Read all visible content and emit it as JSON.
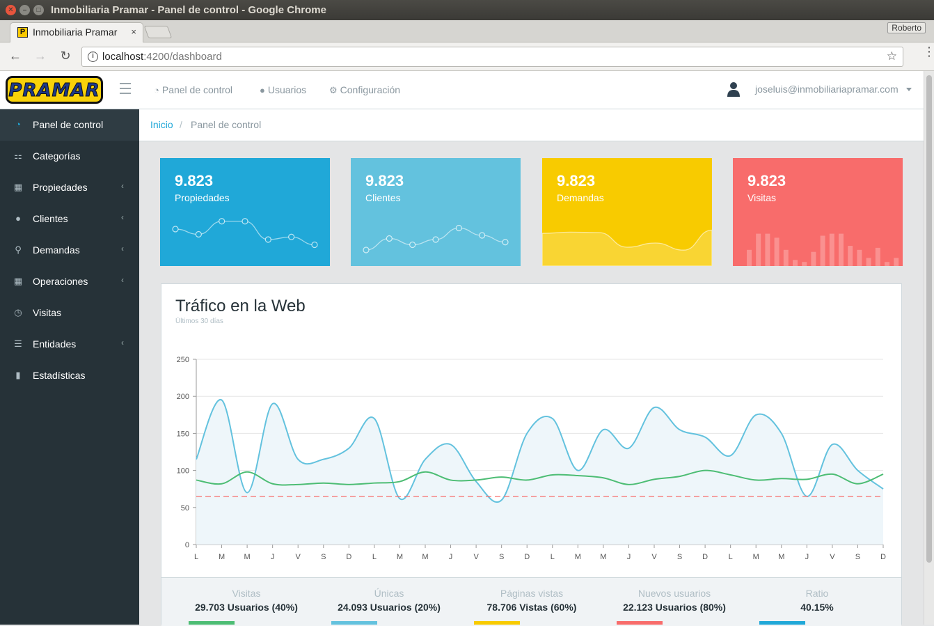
{
  "window": {
    "title": "Inmobiliaria Pramar - Panel de control - Google Chrome"
  },
  "browser": {
    "tab_title": "Inmobiliaria Pramar",
    "tab_close": "×",
    "favicon": "P",
    "profile": "Roberto",
    "url_host": "localhost",
    "url_path": ":4200/dashboard"
  },
  "header": {
    "logo_text": "PRAMAR",
    "nav": [
      {
        "label": "Panel de control",
        "icon": "dashboard-icon"
      },
      {
        "label": "Usuarios",
        "icon": "user-icon"
      },
      {
        "label": "Configuración",
        "icon": "gear-icon"
      }
    ],
    "user_email": "joseluis@inmobiliariapramar.com"
  },
  "sidebar": {
    "items": [
      {
        "label": "Panel de control",
        "icon": "speedometer-icon",
        "active": true,
        "caret": false
      },
      {
        "label": "Categorías",
        "icon": "sitemap-icon",
        "active": false,
        "caret": false
      },
      {
        "label": "Propiedades",
        "icon": "building-icon",
        "active": false,
        "caret": true
      },
      {
        "label": "Clientes",
        "icon": "users-icon",
        "active": false,
        "caret": true
      },
      {
        "label": "Demandas",
        "icon": "search-icon",
        "active": false,
        "caret": true
      },
      {
        "label": "Operaciones",
        "icon": "calculator-icon",
        "active": false,
        "caret": true
      },
      {
        "label": "Visitas",
        "icon": "clock-icon",
        "active": false,
        "caret": false
      },
      {
        "label": "Entidades",
        "icon": "list-icon",
        "active": false,
        "caret": true
      },
      {
        "label": "Estadísticas",
        "icon": "bar-chart-icon",
        "active": false,
        "caret": false
      }
    ]
  },
  "breadcrumb": {
    "home": "Inicio",
    "separator": "/",
    "current": "Panel de control"
  },
  "cards": [
    {
      "value": "9.823",
      "label": "Propiedades",
      "color": "#20a8d8",
      "spark": "line",
      "points": [
        60,
        50,
        75,
        75,
        40,
        45,
        30
      ]
    },
    {
      "value": "9.823",
      "label": "Clientes",
      "color": "#63c2de",
      "spark": "line",
      "points": [
        20,
        42,
        30,
        40,
        62,
        48,
        35
      ]
    },
    {
      "value": "9.823",
      "label": "Demandas",
      "color": "#f8cb00",
      "spark": "area",
      "points": [
        78,
        81,
        80,
        45,
        55,
        38,
        86
      ]
    },
    {
      "value": "9.823",
      "label": "Visitas",
      "color": "#f86c6b",
      "spark": "bar",
      "points": [
        40,
        80,
        80,
        70,
        40,
        15,
        10,
        35,
        75,
        80,
        80,
        50,
        40,
        20,
        45,
        10,
        20,
        45
      ]
    }
  ],
  "traffic": {
    "title": "Tráfico en la Web",
    "subtitle": "Últimos 30 días"
  },
  "chart_data": {
    "type": "line",
    "x": [
      "L",
      "M",
      "M",
      "J",
      "V",
      "S",
      "D",
      "L",
      "M",
      "M",
      "J",
      "V",
      "S",
      "D",
      "L",
      "M",
      "M",
      "J",
      "V",
      "S",
      "D",
      "L",
      "M",
      "M",
      "J",
      "V",
      "S",
      "D"
    ],
    "ylim": [
      0,
      250
    ],
    "yticks": [
      0,
      50,
      100,
      150,
      200,
      250
    ],
    "grid": true,
    "series": [
      {
        "color": "#63c2de",
        "fill": "#eef6fa",
        "values": [
          115,
          195,
          70,
          190,
          115,
          115,
          130,
          170,
          62,
          115,
          135,
          85,
          60,
          150,
          170,
          100,
          155,
          130,
          185,
          155,
          145,
          120,
          175,
          150,
          65,
          135,
          100,
          75
        ]
      },
      {
        "color": "#4dbd74",
        "values": [
          87,
          82,
          98,
          82,
          81,
          83,
          81,
          83,
          85,
          98,
          87,
          87,
          91,
          87,
          94,
          93,
          90,
          81,
          88,
          92,
          100,
          94,
          87,
          89,
          88,
          95,
          82,
          95
        ]
      },
      {
        "color": "#f86c6b",
        "dashed": true,
        "values": [
          65,
          65,
          65,
          65,
          65,
          65,
          65,
          65,
          65,
          65,
          65,
          65,
          65,
          65,
          65,
          65,
          65,
          65,
          65,
          65,
          65,
          65,
          65,
          65,
          65,
          65,
          65,
          65
        ]
      }
    ]
  },
  "stats": [
    {
      "label": "Visitas",
      "value": "29.703 Usuarios (40%)",
      "color": "#4dbd74",
      "progress": 0.4
    },
    {
      "label": "Únicas",
      "value": "24.093 Usuarios (20%)",
      "color": "#63c2de",
      "progress": 0.2
    },
    {
      "label": "Páginas vistas",
      "value": "78.706 Vistas (60%)",
      "color": "#f8cb00",
      "progress": 0.6
    },
    {
      "label": "Nuevos usuarios",
      "value": "22.123 Usuarios (80%)",
      "color": "#f86c6b",
      "progress": 0.8
    },
    {
      "label": "Ratio",
      "value": "40.15%",
      "color": "#20a8d8",
      "progress": 0.4
    }
  ]
}
